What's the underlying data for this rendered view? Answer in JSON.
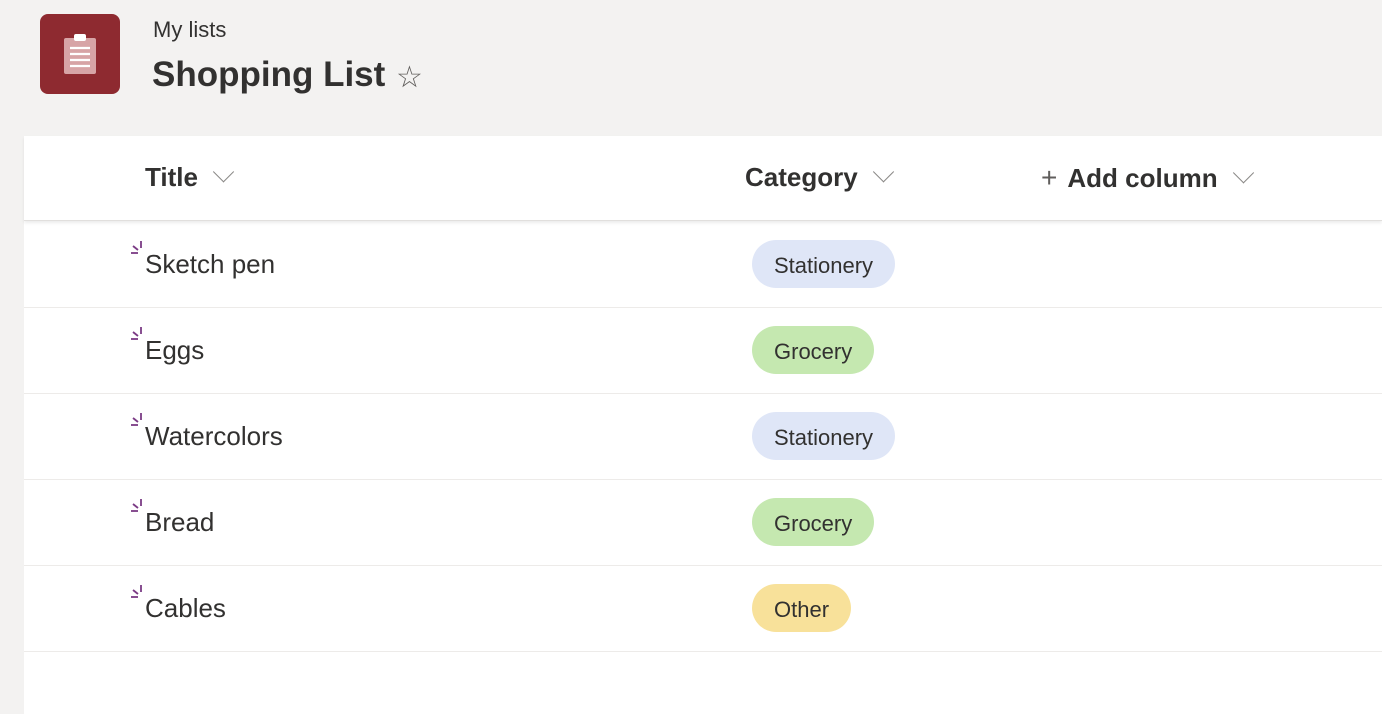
{
  "header": {
    "breadcrumb": "My lists",
    "title": "Shopping List",
    "favorite_icon": "star-outline-icon",
    "app_icon": "clipboard-list-icon",
    "app_color": "#8e2a30"
  },
  "columns": {
    "title": "Title",
    "category": "Category",
    "add_column": "Add column"
  },
  "category_colors": {
    "Stationery": "#dfe6f7",
    "Grocery": "#c5e8b0",
    "Other": "#f8e19a"
  },
  "rows": [
    {
      "title": "Sketch pen",
      "category": "Stationery"
    },
    {
      "title": "Eggs",
      "category": "Grocery"
    },
    {
      "title": "Watercolors",
      "category": "Stationery"
    },
    {
      "title": "Bread",
      "category": "Grocery"
    },
    {
      "title": "Cables",
      "category": "Other"
    }
  ]
}
